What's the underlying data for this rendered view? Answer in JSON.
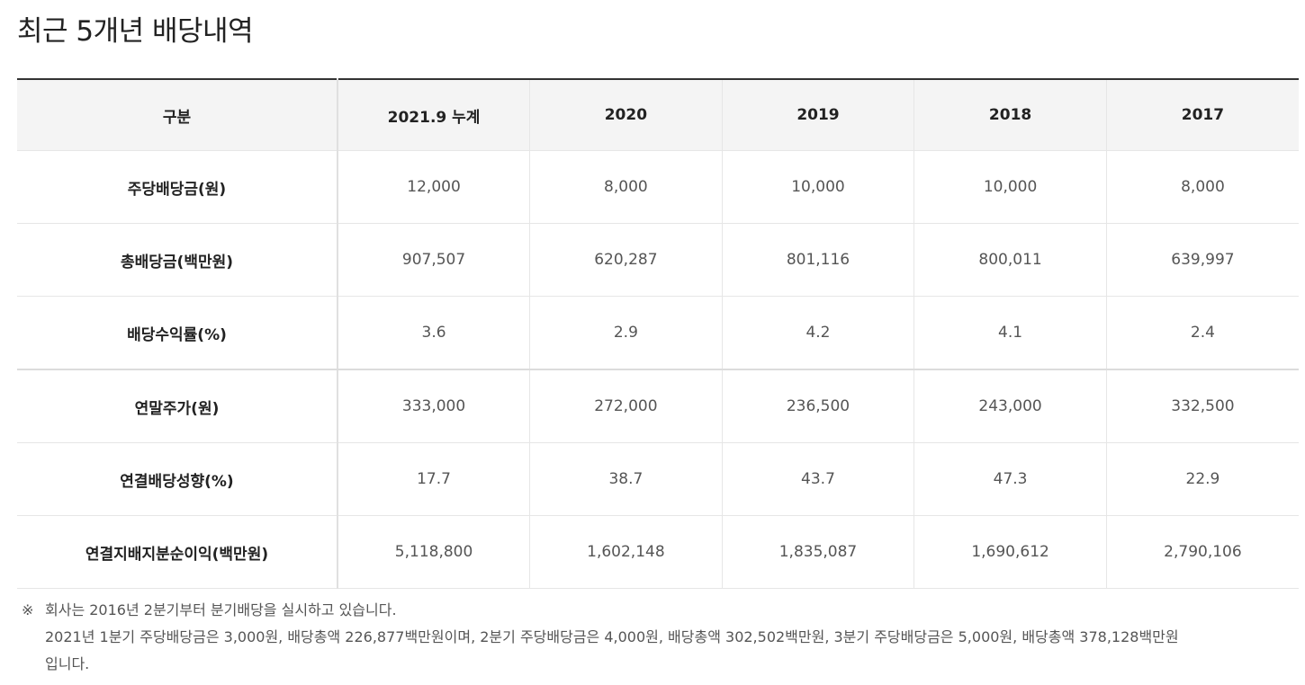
{
  "title": "최근 5개년 배당내역",
  "table": {
    "headers": [
      "구분",
      "2021.9 누계",
      "2020",
      "2019",
      "2018",
      "2017"
    ],
    "rows": [
      {
        "label": "주당배당금(원)",
        "values": [
          "12,000",
          "8,000",
          "10,000",
          "10,000",
          "8,000"
        ]
      },
      {
        "label": "총배당금(백만원)",
        "values": [
          "907,507",
          "620,287",
          "801,116",
          "800,011",
          "639,997"
        ]
      },
      {
        "label": "배당수익률(%)",
        "values": [
          "3.6",
          "2.9",
          "4.2",
          "4.1",
          "2.4"
        ]
      },
      {
        "label": "연말주가(원)",
        "values": [
          "333,000",
          "272,000",
          "236,500",
          "243,000",
          "332,500"
        ]
      },
      {
        "label": "연결배당성향(%)",
        "values": [
          "17.7",
          "38.7",
          "43.7",
          "47.3",
          "22.9"
        ]
      },
      {
        "label": "연결지배지분순이익(백만원)",
        "values": [
          "5,118,800",
          "1,602,148",
          "1,835,087",
          "1,690,612",
          "2,790,106"
        ]
      }
    ]
  },
  "notes": {
    "mark": "※",
    "line1": "회사는 2016년 2분기부터 분기배당을 실시하고 있습니다.",
    "line2": "2021년 1분기 주당배당금은 3,000원, 배당총액 226,877백만원이며, 2분기 주당배당금은 4,000원, 배당총액 302,502백만원, 3분기 주당배당금은 5,000원, 배당총액 378,128백만원",
    "line3": "입니다."
  }
}
